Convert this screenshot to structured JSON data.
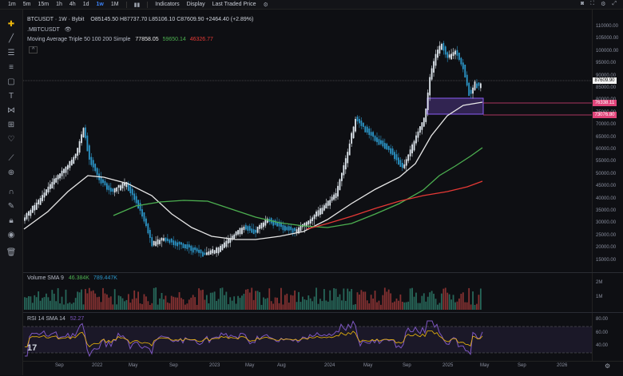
{
  "toolbar_top": {
    "timeframes": [
      "1m",
      "5m",
      "15m",
      "1h",
      "4h",
      "1d",
      "1w",
      "1M"
    ],
    "active_timeframe": "1w",
    "indicators_label": "Indicators",
    "display_label": "Display",
    "price_source_label": "Last Traded Price"
  },
  "legend": {
    "symbol": "BTCUSDT · 1W · Bybit",
    "ohlc": "O85145.50  H87737.70  L85106.10  C87609.90  +2464.40 (+2.89%)",
    "mark_symbol": ".MBTCUSDT",
    "ma_title": "Moving Average Triple 50 100 200 Simple",
    "ma_values": [
      "77858.05",
      "59650.14",
      "46326.77"
    ],
    "ma_colors": [
      "#e8e8e8",
      "#4caf50",
      "#e53935"
    ]
  },
  "price_labels": {
    "current": "87609.90",
    "level1": "76338.11",
    "level2": "73076.80"
  },
  "y_axis": [
    "110000.00",
    "105000.00",
    "100000.00",
    "95000.00",
    "90000.00",
    "85000.00",
    "80000.00",
    "75000.00",
    "70000.00",
    "65000.00",
    "60000.00",
    "55000.00",
    "50000.00",
    "45000.00",
    "40000.00",
    "35000.00",
    "30000.00",
    "25000.00",
    "20000.00",
    "15000.00"
  ],
  "x_axis": [
    "Sep",
    "2022",
    "May",
    "Sep",
    "2023",
    "May",
    "Aug",
    "2024",
    "May",
    "Sep",
    "2025",
    "May",
    "Sep",
    "2026"
  ],
  "volume": {
    "title": "Volume SMA 9",
    "v1": "46.384K",
    "v2": "789.447K",
    "axis": [
      "2M",
      "1M"
    ]
  },
  "rsi": {
    "title": "RSI 14 SMA 14",
    "value": "52.27",
    "axis": [
      "80.00",
      "60.00",
      "40.00"
    ]
  },
  "colors": {
    "up": "#dfe7ee",
    "down": "#2b95c7",
    "ma50": "#e8e8e8",
    "ma100": "#4caf50",
    "ma200": "#e53935",
    "zone": "#8b5cf6",
    "level": "#e0447a"
  }
}
